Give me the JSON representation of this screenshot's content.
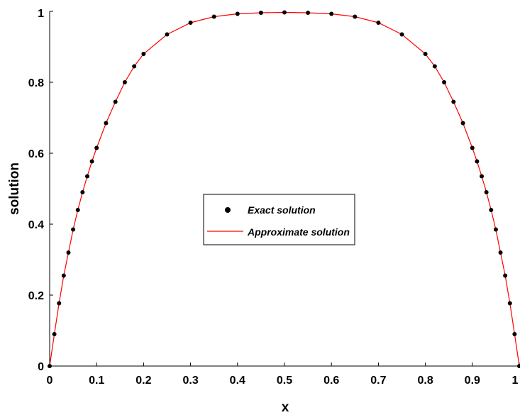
{
  "chart_data": {
    "type": "line",
    "title": "",
    "xlabel": "x",
    "ylabel": "solution",
    "xlim": [
      0,
      1
    ],
    "ylim": [
      0,
      1
    ],
    "x_ticks": [
      "0",
      "0.1",
      "0.2",
      "0.3",
      "0.4",
      "0.5",
      "0.6",
      "0.7",
      "0.8",
      "0.9",
      "1"
    ],
    "y_ticks": [
      "0",
      "0.2",
      "0.4",
      "0.6",
      "0.8",
      "1"
    ],
    "grid": false,
    "legend_position": "center",
    "series": [
      {
        "name": "Exact solution",
        "style": "markers",
        "color": "#000000",
        "x": [
          0,
          0.01,
          0.02,
          0.03,
          0.04,
          0.05,
          0.06,
          0.07,
          0.08,
          0.09,
          0.1,
          0.12,
          0.14,
          0.16,
          0.18,
          0.2,
          0.25,
          0.3,
          0.35,
          0.4,
          0.45,
          0.5,
          0.55,
          0.6,
          0.65,
          0.7,
          0.75,
          0.8,
          0.82,
          0.84,
          0.86,
          0.88,
          0.9,
          0.91,
          0.92,
          0.93,
          0.94,
          0.95,
          0.96,
          0.97,
          0.98,
          0.99,
          1
        ],
        "y": [
          0,
          0.09,
          0.177,
          0.255,
          0.32,
          0.385,
          0.44,
          0.49,
          0.535,
          0.577,
          0.615,
          0.685,
          0.745,
          0.8,
          0.845,
          0.88,
          0.935,
          0.968,
          0.985,
          0.993,
          0.996,
          0.997,
          0.996,
          0.993,
          0.985,
          0.968,
          0.935,
          0.88,
          0.845,
          0.8,
          0.745,
          0.685,
          0.615,
          0.577,
          0.535,
          0.49,
          0.44,
          0.385,
          0.32,
          0.255,
          0.177,
          0.09,
          0
        ]
      },
      {
        "name": "Approximate solution",
        "style": "line",
        "color": "#ff0000",
        "x": [
          0,
          0.01,
          0.02,
          0.03,
          0.04,
          0.05,
          0.06,
          0.07,
          0.08,
          0.09,
          0.1,
          0.12,
          0.14,
          0.16,
          0.18,
          0.2,
          0.25,
          0.3,
          0.35,
          0.4,
          0.45,
          0.5,
          0.55,
          0.6,
          0.65,
          0.7,
          0.75,
          0.8,
          0.82,
          0.84,
          0.86,
          0.88,
          0.9,
          0.91,
          0.92,
          0.93,
          0.94,
          0.95,
          0.96,
          0.97,
          0.98,
          0.99,
          1
        ],
        "y": [
          0,
          0.09,
          0.177,
          0.255,
          0.32,
          0.385,
          0.44,
          0.49,
          0.535,
          0.577,
          0.615,
          0.685,
          0.745,
          0.8,
          0.845,
          0.88,
          0.935,
          0.968,
          0.985,
          0.993,
          0.996,
          0.997,
          0.996,
          0.993,
          0.985,
          0.968,
          0.935,
          0.88,
          0.845,
          0.8,
          0.745,
          0.685,
          0.615,
          0.577,
          0.535,
          0.49,
          0.44,
          0.385,
          0.32,
          0.255,
          0.177,
          0.09,
          0
        ]
      }
    ]
  }
}
